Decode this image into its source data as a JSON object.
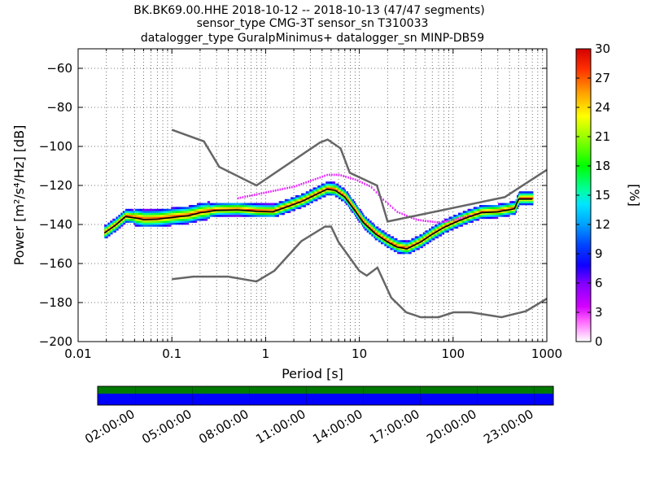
{
  "chart_data": {
    "type": "heatmap",
    "title_lines": [
      "BK.BK69.00.HHE   2018-10-12 -- 2018-10-13  (47/47 segments)",
      "sensor_type CMG-3T sensor_sn T310033",
      "datalogger_type GuralpMinimus+ datalogger_sn MINP-DB59"
    ],
    "xlabel": "Period [s]",
    "ylabel": "Power [m²/s⁴/Hz] [dB]",
    "xscale": "log",
    "xlim": [
      0.01,
      1000
    ],
    "ylim": [
      -200,
      -50
    ],
    "x_ticks": [
      0.01,
      0.1,
      1,
      10,
      100,
      1000
    ],
    "x_tick_labels": [
      "0.01",
      "0.1",
      "1",
      "10",
      "100",
      "1000"
    ],
    "y_ticks": [
      -200,
      -180,
      -160,
      -140,
      -120,
      -100,
      -80,
      -60
    ],
    "y_tick_labels": [
      "−200",
      "−180",
      "−160",
      "−140",
      "−120",
      "−100",
      "−80",
      "−60"
    ],
    "grid": "dotted",
    "colorbar": {
      "label": "[%]",
      "range": [
        0,
        30
      ],
      "ticks": [
        0,
        3,
        6,
        9,
        12,
        15,
        18,
        21,
        24,
        27,
        30
      ],
      "tick_labels": [
        "0",
        "3",
        "6",
        "9",
        "12",
        "15",
        "18",
        "21",
        "24",
        "27",
        "30"
      ]
    },
    "noise_models": [
      {
        "name": "NHNM",
        "points": [
          [
            0.1,
            -91.5
          ],
          [
            0.22,
            -97.4
          ],
          [
            0.32,
            -110.5
          ],
          [
            0.8,
            -120
          ],
          [
            3.8,
            -98
          ],
          [
            4.6,
            -96.5
          ],
          [
            6.3,
            -101
          ],
          [
            7.9,
            -113.5
          ],
          [
            15.4,
            -120
          ],
          [
            20,
            -138.5
          ],
          [
            354.8,
            -126
          ],
          [
            1000,
            -112
          ]
        ]
      },
      {
        "name": "NLNM",
        "points": [
          [
            0.1,
            -168
          ],
          [
            0.17,
            -166.7
          ],
          [
            0.4,
            -166.7
          ],
          [
            0.8,
            -169.2
          ],
          [
            1.24,
            -163.7
          ],
          [
            2.4,
            -148.6
          ],
          [
            4.3,
            -141.1
          ],
          [
            5,
            -141.1
          ],
          [
            6,
            -149
          ],
          [
            10,
            -163.8
          ],
          [
            12,
            -166.2
          ],
          [
            15.6,
            -162.1
          ],
          [
            21.9,
            -177.5
          ],
          [
            31.6,
            -185
          ],
          [
            45,
            -187.5
          ],
          [
            70,
            -187.5
          ],
          [
            101,
            -185
          ],
          [
            154,
            -185
          ],
          [
            328,
            -187.5
          ],
          [
            600,
            -184.4
          ],
          [
            1000,
            -178
          ]
        ]
      }
    ],
    "mode_curve": {
      "name": "mode",
      "points": [
        [
          0.019,
          -144.4
        ],
        [
          0.025,
          -140.4
        ],
        [
          0.032,
          -136
        ],
        [
          0.04,
          -136.6
        ],
        [
          0.05,
          -137.5
        ],
        [
          0.07,
          -137.3
        ],
        [
          0.1,
          -136.4
        ],
        [
          0.15,
          -135.5
        ],
        [
          0.2,
          -134
        ],
        [
          0.3,
          -132.8
        ],
        [
          0.5,
          -132.5
        ],
        [
          0.8,
          -133.3
        ],
        [
          1.2,
          -133.5
        ],
        [
          1.8,
          -130.5
        ],
        [
          2.5,
          -128
        ],
        [
          3.5,
          -124.5
        ],
        [
          4.5,
          -122
        ],
        [
          5.5,
          -122.5
        ],
        [
          7,
          -126
        ],
        [
          9,
          -133
        ],
        [
          11,
          -139
        ],
        [
          15,
          -145
        ],
        [
          20,
          -149
        ],
        [
          25,
          -151.5
        ],
        [
          32,
          -152.5
        ],
        [
          45,
          -149
        ],
        [
          60,
          -145
        ],
        [
          80,
          -141.5
        ],
        [
          110,
          -138.5
        ],
        [
          150,
          -136
        ],
        [
          200,
          -134
        ],
        [
          300,
          -133.5
        ],
        [
          450,
          -132
        ],
        [
          500,
          -127
        ],
        [
          700,
          -127
        ]
      ]
    },
    "upper_percentile_curve": {
      "points": [
        [
          0.5,
          -127
        ],
        [
          1,
          -124
        ],
        [
          2,
          -121
        ],
        [
          3,
          -118
        ],
        [
          4.5,
          -115
        ],
        [
          6,
          -115
        ],
        [
          9,
          -117.5
        ],
        [
          13,
          -121
        ],
        [
          18,
          -128
        ],
        [
          25,
          -134
        ],
        [
          40,
          -138
        ],
        [
          70,
          -139.5
        ],
        [
          100,
          -138
        ],
        [
          150,
          -136
        ]
      ]
    },
    "segments_bar": {
      "tick_labels": [
        "02:00:00",
        "05:00:00",
        "08:00:00",
        "11:00:00",
        "14:00:00",
        "17:00:00",
        "20:00:00",
        "23:00:00"
      ],
      "top_color": "#007a00",
      "bottom_color": "#0000ff"
    }
  }
}
